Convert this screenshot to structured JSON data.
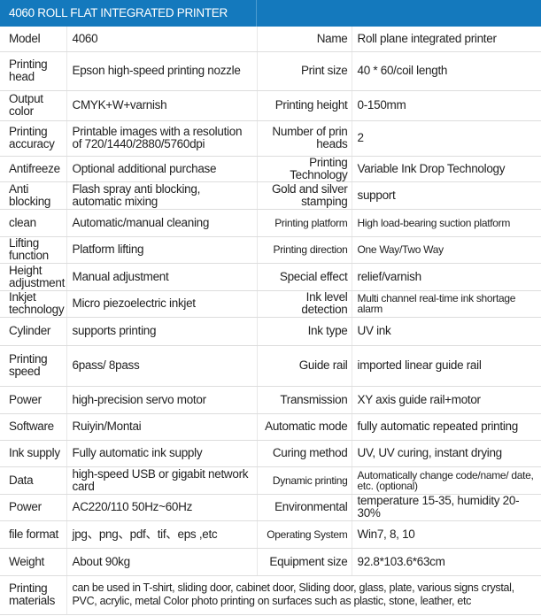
{
  "title": "4060 ROLL FLAT INTEGRATED PRINTER",
  "header_color": "#1479bd",
  "rows": [
    {
      "l1": "Model",
      "v1": "4060",
      "l2": "Name",
      "v2": "Roll plane integrated printer"
    },
    {
      "l1": "Printing head",
      "v1": "Epson high-speed printing nozzle",
      "l2": "Print size",
      "v2": "40 * 60/coil length"
    },
    {
      "l1": "Output color",
      "v1": "CMYK+W+varnish",
      "l2": "Printing height",
      "v2": "0-150mm"
    },
    {
      "l1": "Printing accuracy",
      "v1": "Printable images with a resolution of 720/1440/2880/5760dpi",
      "l2": "Number of prin heads",
      "v2": "2"
    },
    {
      "l1": "Antifreeze",
      "v1": "Optional additional purchase",
      "l2": "Printing Technology",
      "v2": "Variable Ink Drop Technology"
    },
    {
      "l1": "Anti blocking",
      "v1": "Flash spray anti blocking, automatic mixing",
      "l2": "Gold and silver stamping",
      "v2": "support"
    },
    {
      "l1": "clean",
      "v1": "Automatic/manual cleaning",
      "l2": "Printing platform",
      "v2": "High load-bearing suction platform"
    },
    {
      "l1": "Lifting function",
      "v1": "Platform lifting",
      "l2": "Printing direction",
      "v2": "One Way/Two Way"
    },
    {
      "l1": "Height adjustment",
      "v1": "Manual adjustment",
      "l2": "Special effect",
      "v2": "relief/varnish"
    },
    {
      "l1": "Inkjet technology",
      "v1": "Micro piezoelectric inkjet",
      "l2": "Ink level detection",
      "v2": "Multi channel real-time ink shortage alarm"
    },
    {
      "l1": "Cylinder",
      "v1": "supports printing",
      "l2": "Ink type",
      "v2": "UV ink"
    },
    {
      "l1": "Printing speed",
      "v1": "6pass/ 8pass",
      "l2": "Guide rail",
      "v2": "imported linear guide rail"
    },
    {
      "l1": "Power",
      "v1": "high-precision servo motor",
      "l2": "Transmission",
      "v2": "XY axis guide rail+motor"
    },
    {
      "l1": "Software",
      "v1": "Ruiyin/Montai",
      "l2": "Automatic mode",
      "v2": "fully automatic repeated printing"
    },
    {
      "l1": "Ink supply",
      "v1": "Fully automatic ink supply",
      "l2": "Curing method",
      "v2": "UV, UV curing, instant drying"
    },
    {
      "l1": "Data",
      "v1": "high-speed USB or gigabit network card",
      "l2": "Dynamic printing",
      "v2": "Automatically change code/name/ date, etc. (optional)"
    },
    {
      "l1": "Power",
      "v1": "AC220/110 50Hz~60Hz",
      "l2": "Environmental",
      "v2": "temperature 15-35, humidity 20-30%"
    },
    {
      "l1": "file format",
      "v1": "jpg、png、pdf、tif、eps ,etc",
      "l2": "Operating System",
      "v2": "Win7, 8, 10"
    },
    {
      "l1": "Weight",
      "v1": "About 90kg",
      "l2": "Equipment size",
      "v2": "92.8*103.6*63cm"
    }
  ],
  "materials": {
    "label": "Printing materials",
    "value": "can be used in T-shirt, sliding door, cabinet door, Sliding door, glass, plate, various signs crystal, PVC, acrylic, metal Color photo printing on surfaces such as plastic, stone, leather, etc"
  }
}
